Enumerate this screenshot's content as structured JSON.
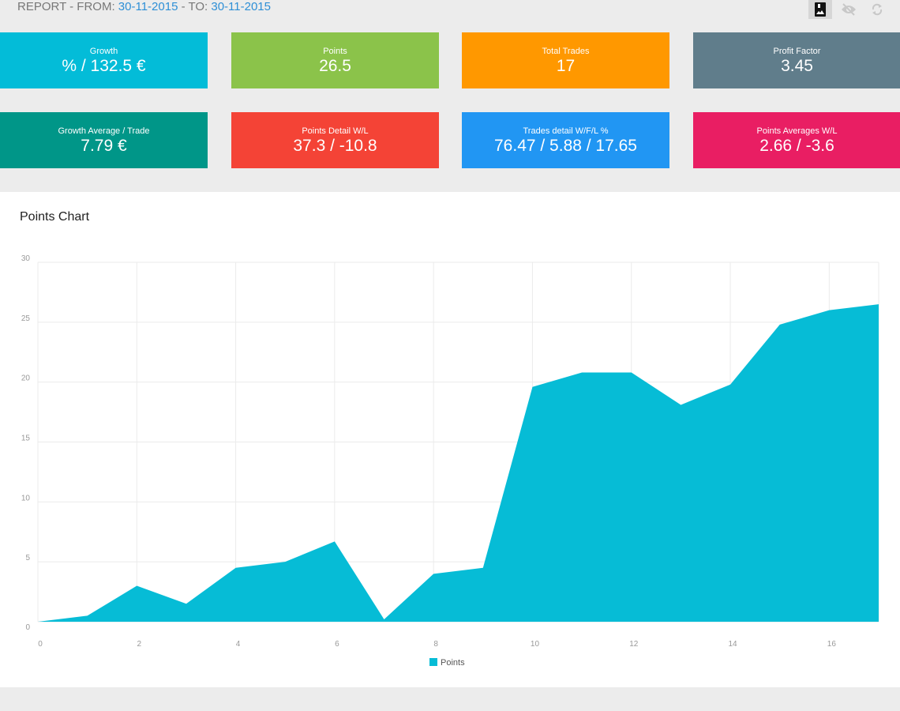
{
  "header": {
    "prefix": "REPORT - FROM: ",
    "from": "30-11-2015",
    "mid": " - TO: ",
    "to": "30-11-2015"
  },
  "toolbar": [
    {
      "icon": "image-icon",
      "active": true
    },
    {
      "icon": "eye-off-icon",
      "active": false
    },
    {
      "icon": "refresh-icon",
      "active": false
    }
  ],
  "cards": [
    {
      "label": "Growth",
      "value": "% / 132.5 €",
      "color": "#03bcd8"
    },
    {
      "label": "Points",
      "value": "26.5",
      "color": "#8bc34a"
    },
    {
      "label": "Total Trades",
      "value": "17",
      "color": "#ff9800"
    },
    {
      "label": "Profit Factor",
      "value": "3.45",
      "color": "#607d8b"
    },
    {
      "label": "Growth Average / Trade",
      "value": "7.79 €",
      "color": "#009688"
    },
    {
      "label": "Points Detail W/L",
      "value": "37.3 / -10.8",
      "color": "#f44336"
    },
    {
      "label": "Trades detail W/F/L %",
      "value": "76.47 / 5.88 / 17.65",
      "color": "#2196f3"
    },
    {
      "label": "Points Averages W/L",
      "value": "2.66 / -3.6",
      "color": "#e91e63"
    }
  ],
  "panel": {
    "title": "Points Chart"
  },
  "chart_data": {
    "type": "area",
    "x": [
      0,
      1,
      2,
      3,
      4,
      5,
      6,
      7,
      8,
      9,
      10,
      11,
      12,
      13,
      14,
      15,
      16,
      17
    ],
    "series": [
      {
        "name": "Points",
        "color": "#06bcd6",
        "values": [
          0,
          0.5,
          3.0,
          1.5,
          4.5,
          5.0,
          6.7,
          0.2,
          4.0,
          4.5,
          19.6,
          20.8,
          20.8,
          18.1,
          19.8,
          24.8,
          26.0,
          26.5
        ]
      }
    ],
    "xticks": [
      "0",
      "2",
      "4",
      "6",
      "8",
      "10",
      "12",
      "14",
      "16"
    ],
    "yticks": [
      "0",
      "5",
      "10",
      "15",
      "20",
      "25",
      "30"
    ],
    "xlim": [
      0,
      17
    ],
    "ylim": [
      0,
      30
    ],
    "grid": true,
    "legend": "bottom"
  }
}
